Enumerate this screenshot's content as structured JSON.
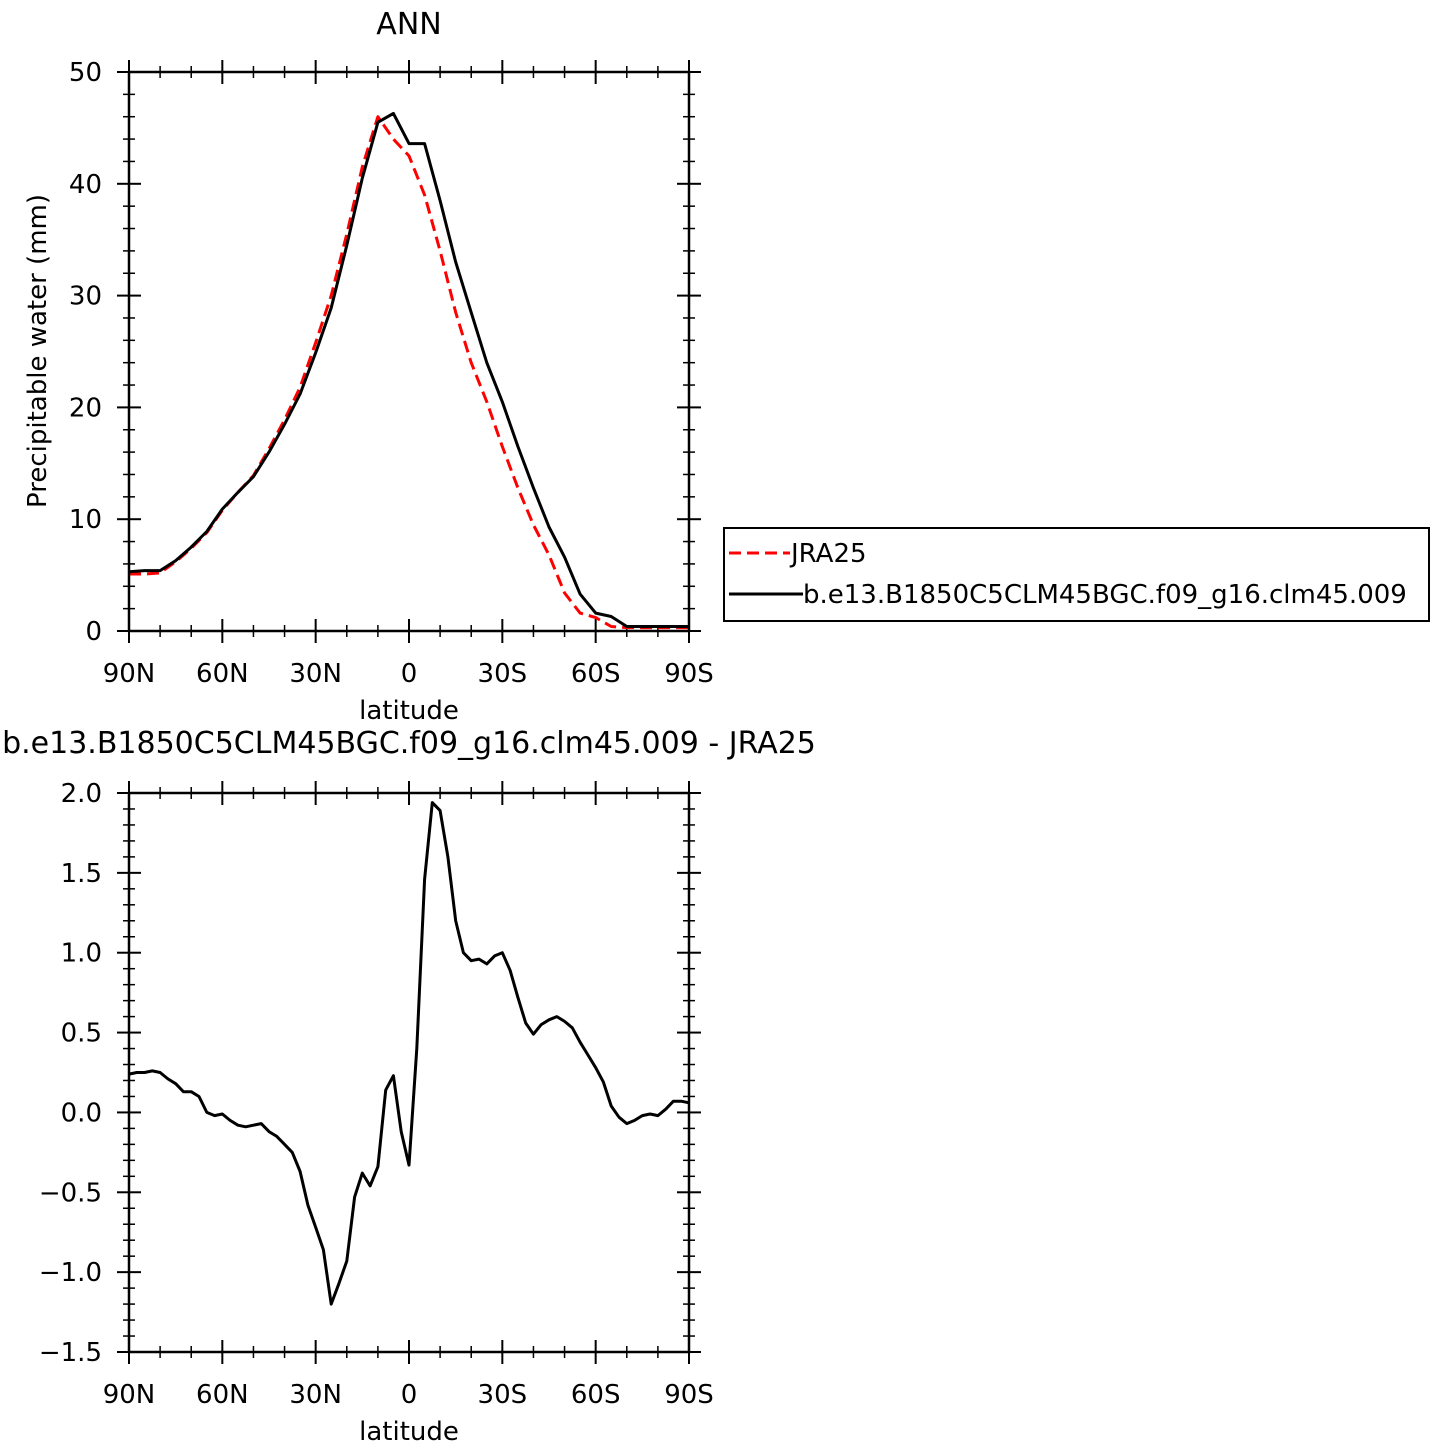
{
  "chart_data": [
    {
      "type": "line",
      "title": "ANN",
      "xlabel": "latitude",
      "ylabel": "Precipitable water (mm)",
      "xlim": [
        90,
        -90
      ],
      "ylim": [
        0,
        50
      ],
      "yticks": [
        0,
        10,
        20,
        30,
        40,
        50
      ],
      "ytick_labels": [
        "0",
        "10",
        "20",
        "30",
        "40",
        "50"
      ],
      "xticks": [
        90,
        60,
        30,
        0,
        -30,
        -60,
        -90
      ],
      "xtick_labels": [
        "90N",
        "60N",
        "30N",
        "0",
        "30S",
        "60S",
        "90S"
      ],
      "legend_position": "right",
      "grid": false,
      "series": [
        {
          "name": "JRA25",
          "color": "#ff0000",
          "dash": true,
          "x": [
            90,
            85,
            80,
            75,
            70,
            65,
            60,
            55,
            50,
            45,
            40,
            35,
            30,
            25,
            20,
            15,
            10,
            5,
            0,
            -5,
            -10,
            -15,
            -20,
            -25,
            -30,
            -35,
            -40,
            -45,
            -50,
            -55,
            -60,
            -65,
            -70,
            -75,
            -80,
            -85,
            -90
          ],
          "y": [
            5.1,
            5.1,
            5.2,
            6.2,
            7.4,
            8.8,
            10.8,
            12.4,
            13.9,
            16.3,
            18.9,
            21.8,
            25.8,
            30.0,
            35.5,
            41.5,
            46.0,
            44.0,
            42.5,
            39.0,
            34.0,
            28.5,
            24.0,
            20.5,
            16.5,
            12.8,
            9.5,
            6.8,
            3.4,
            1.6,
            1.2,
            0.4,
            0.3,
            0.3,
            0.3,
            0.3,
            0.3
          ]
        },
        {
          "name": "b.e13.B1850C5CLM45BGC.f09_g16.clm45.009",
          "color": "#000000",
          "dash": false,
          "x": [
            90,
            85,
            80,
            75,
            70,
            65,
            60,
            55,
            50,
            45,
            40,
            35,
            30,
            25,
            20,
            15,
            10,
            5,
            0,
            -5,
            -10,
            -15,
            -20,
            -25,
            -30,
            -35,
            -40,
            -45,
            -50,
            -55,
            -60,
            -65,
            -70,
            -75,
            -80,
            -85,
            -90
          ],
          "y": [
            5.3,
            5.4,
            5.4,
            6.3,
            7.5,
            8.9,
            10.9,
            12.4,
            13.8,
            16.0,
            18.5,
            21.2,
            24.9,
            28.9,
            34.5,
            40.5,
            45.5,
            46.3,
            43.6,
            43.6,
            38.5,
            33.0,
            28.5,
            24.0,
            20.5,
            16.5,
            12.8,
            9.3,
            6.6,
            3.3,
            1.6,
            1.3,
            0.4,
            0.4,
            0.4,
            0.4,
            0.4
          ]
        }
      ]
    },
    {
      "type": "line",
      "title": "b.e13.B1850C5CLM45BGC.f09_g16.clm45.009 - JRA25",
      "xlabel": "latitude",
      "ylabel": "Precipitable water (mm)",
      "xlim": [
        90,
        -90
      ],
      "ylim": [
        -1.5,
        2.0
      ],
      "yticks": [
        -1.5,
        -1.0,
        -0.5,
        0.0,
        0.5,
        1.0,
        1.5,
        2.0
      ],
      "ytick_labels": [
        "−1.5",
        "−1.0",
        "−0.5",
        "0.0",
        "0.5",
        "1.0",
        "1.5",
        "2.0"
      ],
      "xticks": [
        90,
        60,
        30,
        0,
        -30,
        -60,
        -90
      ],
      "xtick_labels": [
        "90N",
        "60N",
        "30N",
        "0",
        "30S",
        "60S",
        "90S"
      ],
      "grid": false,
      "series": [
        {
          "color": "#000000",
          "x": [
            90,
            87.5,
            85,
            82.5,
            80,
            77.5,
            75,
            72.5,
            70,
            67.5,
            65,
            62.5,
            60,
            57.5,
            55,
            52.5,
            50,
            47.5,
            45,
            42.5,
            40,
            37.5,
            35,
            32.5,
            30,
            27.5,
            25,
            22.5,
            20,
            17.5,
            15,
            12.5,
            10,
            7.5,
            5,
            2.5,
            0,
            -2.5,
            -5,
            -7.5,
            -10,
            -12.5,
            -15,
            -17.5,
            -20,
            -22.5,
            -25,
            -27.5,
            -30,
            -32.5,
            -35,
            -37.5,
            -40,
            -42.5,
            -45,
            -47.5,
            -50,
            -52.5,
            -55,
            -57.5,
            -60,
            -62.5,
            -65,
            -67.5,
            -70,
            -72.5,
            -75,
            -77.5,
            -80,
            -82.5,
            -85,
            -87.5,
            -90
          ],
          "y": [
            0.24,
            0.25,
            0.25,
            0.26,
            0.25,
            0.21,
            0.18,
            0.13,
            0.13,
            0.1,
            0.0,
            -0.02,
            -0.01,
            -0.05,
            -0.08,
            -0.09,
            -0.08,
            -0.07,
            -0.12,
            -0.15,
            -0.2,
            -0.25,
            -0.37,
            -0.58,
            -0.72,
            -0.86,
            -1.2,
            -1.07,
            -0.93,
            -0.53,
            -0.38,
            -0.46,
            -0.34,
            0.14,
            0.23,
            -0.12,
            -0.33,
            0.4,
            1.46,
            1.94,
            1.89,
            1.6,
            1.2,
            1.0,
            0.95,
            0.96,
            0.93,
            0.98,
            1.0,
            0.89,
            0.72,
            0.56,
            0.49,
            0.55,
            0.58,
            0.6,
            0.57,
            0.53,
            0.44,
            0.36,
            0.28,
            0.19,
            0.04,
            -0.03,
            -0.07,
            -0.05,
            -0.02,
            -0.01,
            -0.02,
            0.02,
            0.07,
            0.07,
            0.06
          ]
        }
      ]
    }
  ],
  "legend": {
    "entries": [
      "JRA25",
      "b.e13.B1850C5CLM45BGC.f09_g16.clm45.009"
    ]
  }
}
